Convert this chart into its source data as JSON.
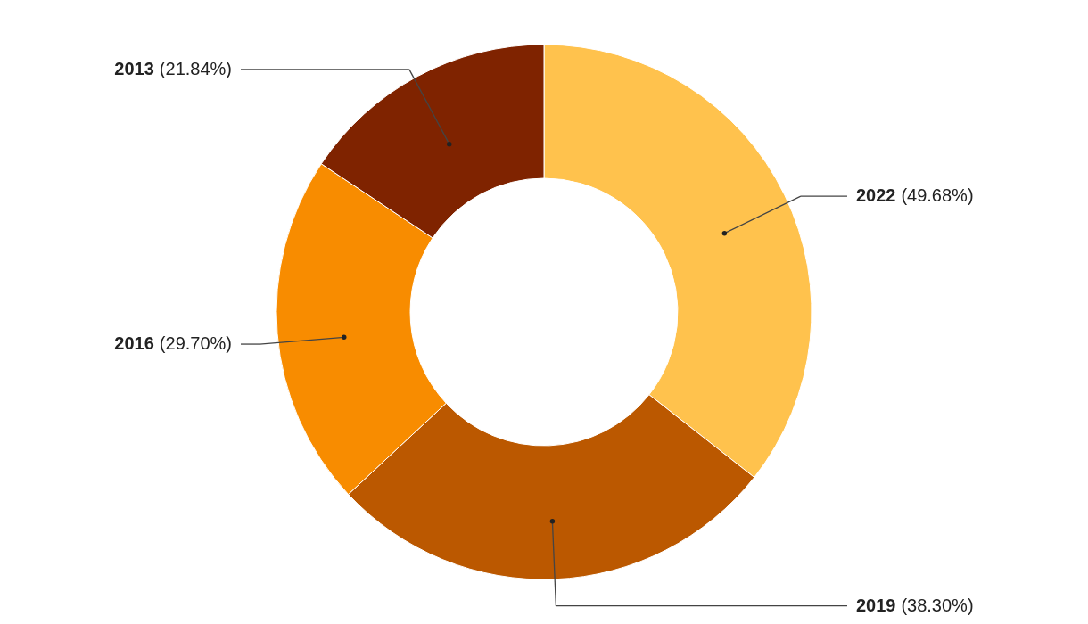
{
  "chart_data": {
    "type": "donut",
    "categories": [
      "2022",
      "2019",
      "2016",
      "2013"
    ],
    "values": [
      49.68,
      38.3,
      29.7,
      21.84
    ],
    "colors": [
      "#ffc24d",
      "#bb5800",
      "#f88c00",
      "#7f2300"
    ],
    "value_labels": [
      "(49.68%)",
      "(38.30%)",
      "(29.70%)",
      "(21.84%)"
    ]
  }
}
